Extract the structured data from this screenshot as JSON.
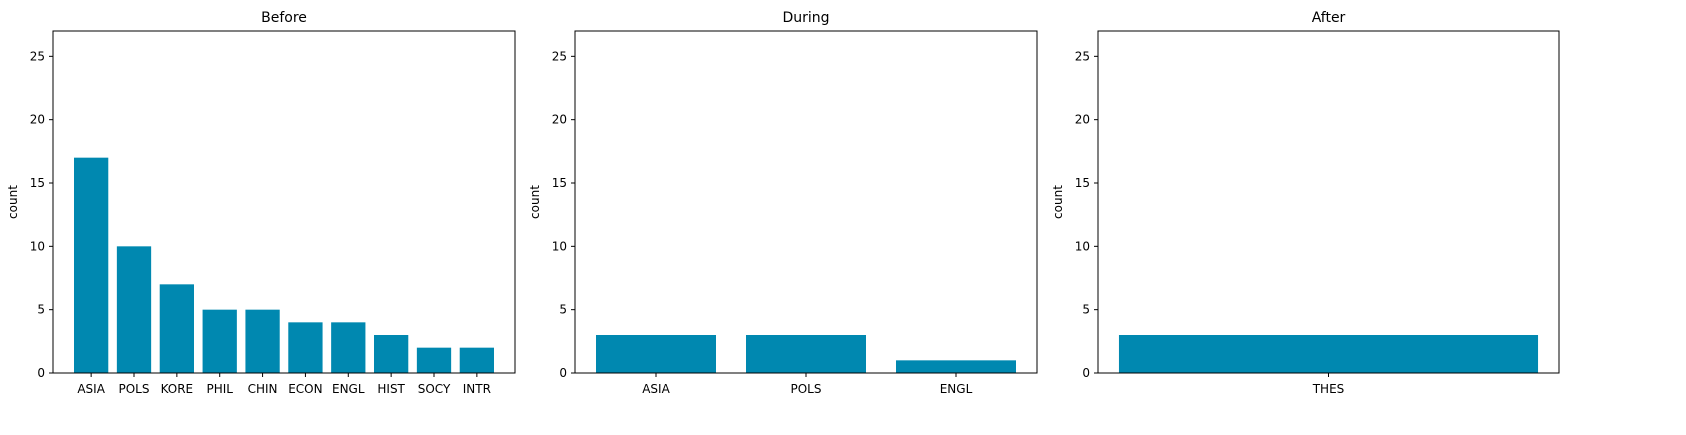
{
  "colors": {
    "bar": "#0088b0",
    "axis": "#000000",
    "background": "#ffffff"
  },
  "chart_data": [
    {
      "type": "bar",
      "title": "Before",
      "ylabel": "count",
      "xlabel": "",
      "ylim": [
        0,
        27
      ],
      "yticks": [
        0,
        5,
        10,
        15,
        20,
        25
      ],
      "categories": [
        "ASIA",
        "POLS",
        "KORE",
        "PHIL",
        "CHIN",
        "ECON",
        "ENGL",
        "HIST",
        "SOCY",
        "INTR"
      ],
      "values": [
        17,
        10,
        7,
        5,
        5,
        4,
        4,
        3,
        2,
        2
      ]
    },
    {
      "type": "bar",
      "title": "During",
      "ylabel": "count",
      "xlabel": "",
      "ylim": [
        0,
        27
      ],
      "yticks": [
        0,
        5,
        10,
        15,
        20,
        25
      ],
      "categories": [
        "ASIA",
        "POLS",
        "ENGL"
      ],
      "values": [
        3,
        3,
        1
      ]
    },
    {
      "type": "bar",
      "title": "After",
      "ylabel": "count",
      "xlabel": "",
      "ylim": [
        0,
        27
      ],
      "yticks": [
        0,
        5,
        10,
        15,
        20,
        25
      ],
      "categories": [
        "THES"
      ],
      "values": [
        3
      ]
    }
  ]
}
